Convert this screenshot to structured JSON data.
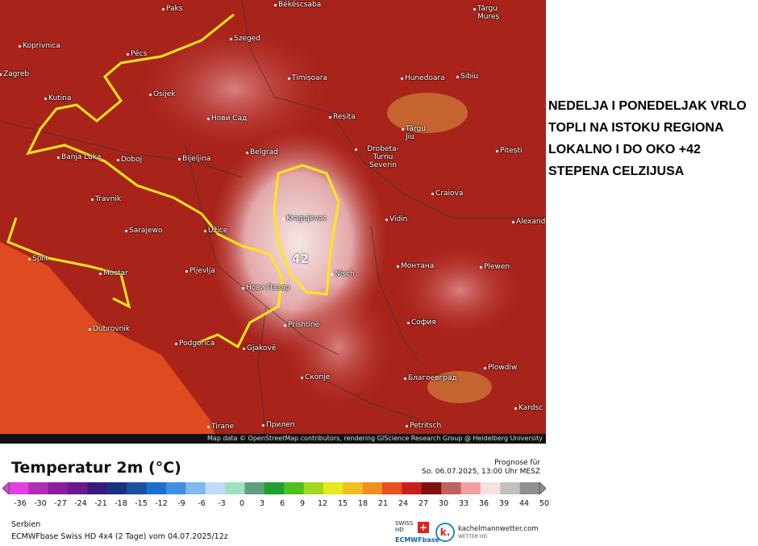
{
  "map": {
    "cities": [
      "Paks",
      "Békéscsaba",
      "Târgu Mureș",
      "Koprivnica",
      "Szeged",
      "Pécs",
      "Zagreb",
      "Timișoara",
      "Hunedoara",
      "Sibiu",
      "Osijek",
      "Kutina",
      "Нови Сад",
      "Reșița",
      "Târgu Jiu",
      "Banja Luka",
      "Doboj",
      "Bijeljina",
      "Belgrad",
      "Drobeta-Turnu Severin",
      "Pitești",
      "Travnik",
      "Craiova",
      "Sarajewo",
      "Užice",
      "Kragujevac",
      "Vidin",
      "Alexand",
      "Split",
      "Mostar",
      "Pljevlja",
      "Nisch",
      "Монтана",
      "Plewen",
      "Нови Пазар",
      "Dubrovnik",
      "Podgorica",
      "Prishtinë",
      "София",
      "Gjakovë",
      "Скопје",
      "Благоевград",
      "Plowdiw",
      "Kardsc",
      "Tirane",
      "Прилеп",
      "Petritsch"
    ],
    "peak_label": "42",
    "attribution": "Map data © OpenStreetMap contributors, rendering GIScience Research Group @ Heidelberg University"
  },
  "note": "NEDELJA I PONEDELJAK VRLO TOPLI NA ISTOKU REGIONA LOKALNO I DO OKO +42 STEPENA CELZIJUSA",
  "legend": {
    "title": "Temperatur 2m (°C)",
    "forecast_label": "Prognose für",
    "forecast_time": "So. 06.07.2025, 13:00 Uhr MESZ",
    "ticks": [
      "-36",
      "-30",
      "-27",
      "-24",
      "-21",
      "-18",
      "-15",
      "-12",
      "-9",
      "-6",
      "-3",
      "0",
      "3",
      "6",
      "9",
      "12",
      "15",
      "18",
      "21",
      "24",
      "27",
      "30",
      "33",
      "36",
      "39",
      "44",
      "50"
    ],
    "colors": [
      "#e040e0",
      "#b030b0",
      "#8a1f9a",
      "#6a1a8a",
      "#3a1a80",
      "#1a3080",
      "#1a50a0",
      "#1a70d0",
      "#4090e0",
      "#80b8f0",
      "#c0dcf8",
      "#a0e0c0",
      "#60a080",
      "#20a030",
      "#50c020",
      "#a0d820",
      "#e8e820",
      "#f0c020",
      "#f09020",
      "#e85020",
      "#c82020",
      "#801010",
      "#c06060",
      "#f0a0a0",
      "#f8e0e0",
      "#c0c0c0",
      "#909090"
    ],
    "region": "Serbien",
    "model": "ECMWFbase Swiss HD 4x4 (2 Tage) vom 04.07.2025/12z"
  },
  "logos": {
    "swiss": "SWISS HD",
    "ecmwf": "ECMWFbase",
    "site": "kachelmannwetter.com",
    "site_sub": "WETTER HD",
    "k": "k."
  }
}
